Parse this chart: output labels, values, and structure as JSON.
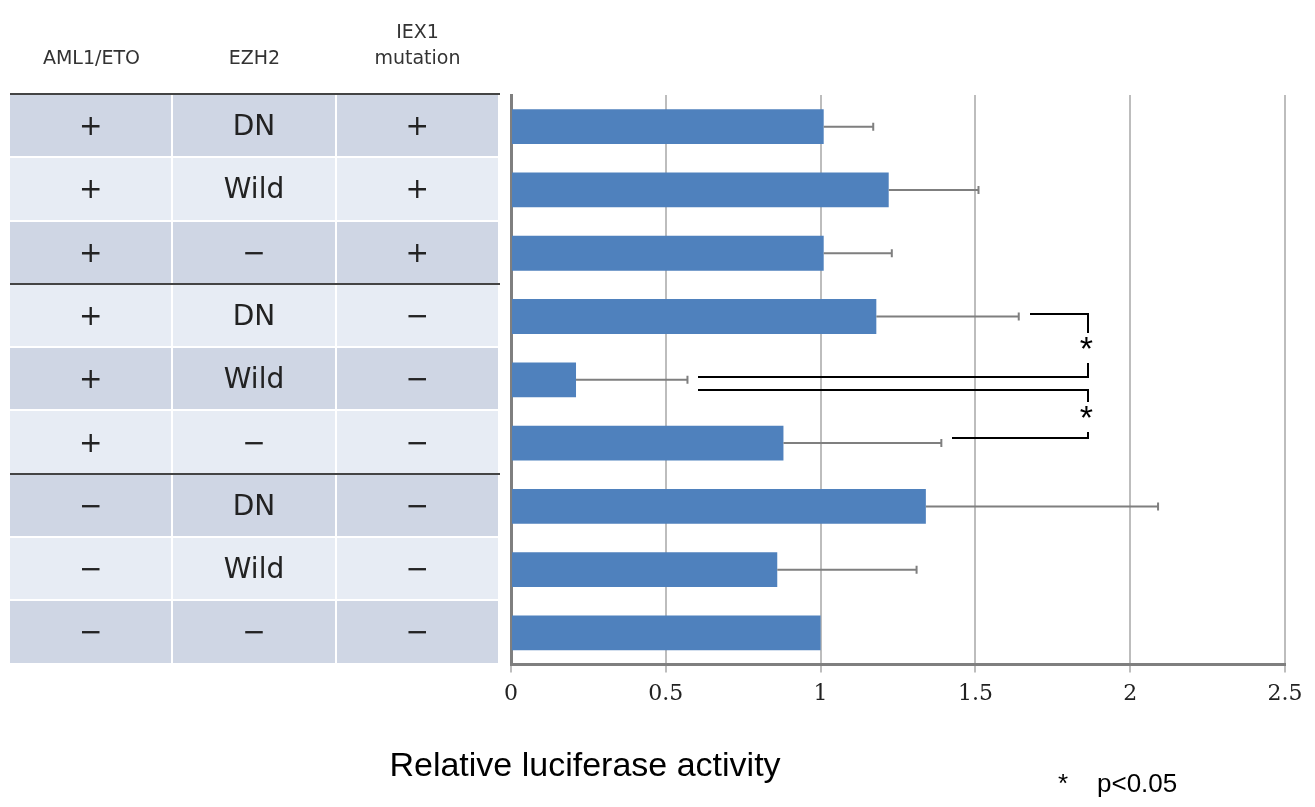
{
  "chart_data": {
    "type": "bar",
    "orientation": "horizontal",
    "ylabel": "AML1/ETO\tEZH2\tIEX1 mutation",
    "xlabel": "Relative luciferase activity",
    "categories": [
      "+\tDN\t+",
      "+\tWild\t+",
      "+\t−\t+",
      "+\tDN\t−",
      "+\tWild\t−",
      "+\t−\t−",
      "−\tDN\t−",
      "−\tWild\t−",
      "−\t−\t−"
    ],
    "values": [
      1.01,
      1.22,
      1.01,
      1.18,
      0.21,
      0.88,
      1.34,
      0.86,
      1.0
    ],
    "errors": [
      [
        1.01,
        1.17
      ],
      [
        1.22,
        1.51
      ],
      [
        1.01,
        1.23
      ],
      [
        1.18,
        1.64
      ],
      [
        0.21,
        0.57
      ],
      [
        0.88,
        1.39
      ],
      [
        1.34,
        2.09
      ],
      [
        0.86,
        1.31
      ],
      null
    ],
    "color": "#4f81bd",
    "xlim": [
      0,
      2.5
    ],
    "xticks": [
      0,
      0.5,
      1,
      1.5,
      2,
      2.5
    ],
    "grid": "x",
    "legend": false,
    "annotations": [
      "*",
      "*",
      "*    p<0.05"
    ]
  }
}
